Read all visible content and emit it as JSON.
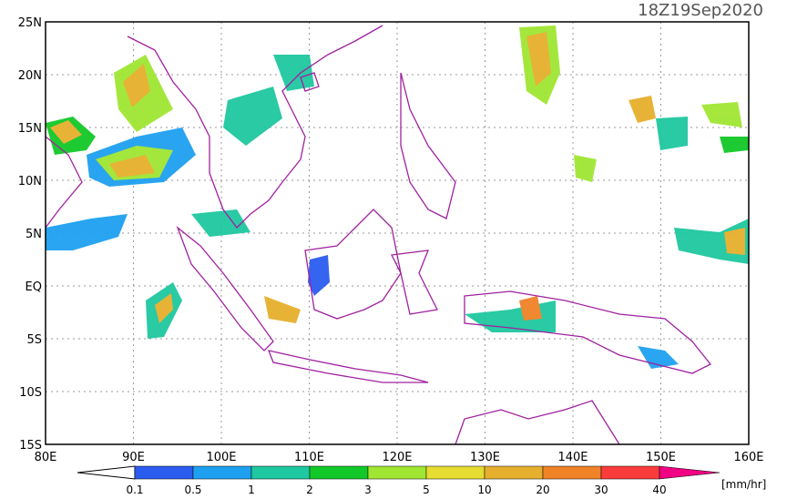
{
  "header": {
    "timestamp": "18Z19Sep2020"
  },
  "map": {
    "lat_labels": [
      "25N",
      "20N",
      "15N",
      "10N",
      "5N",
      "EQ",
      "5S",
      "10S",
      "15S"
    ],
    "lon_labels": [
      "80E",
      "90E",
      "100E",
      "110E",
      "120E",
      "130E",
      "140E",
      "150E",
      "160E"
    ]
  },
  "colorbar": {
    "labels": [
      0.1,
      0.5,
      1,
      2,
      3,
      5,
      10,
      20,
      30,
      40
    ],
    "colors": [
      "#ffffff",
      "#2a5cf0",
      "#1ea0f0",
      "#1ec8a0",
      "#12c828",
      "#a0e632",
      "#e6dc32",
      "#e6af2d",
      "#f08228",
      "#fa3c3c",
      "#f00082"
    ],
    "unit": "[mm/hr]"
  }
}
